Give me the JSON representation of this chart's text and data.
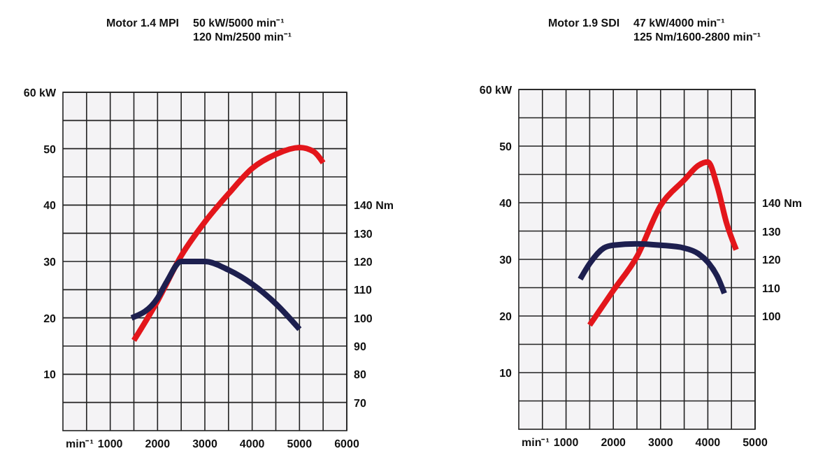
{
  "chart_data": [
    {
      "type": "line",
      "title": "Motor 1.4 MPI",
      "annotations": [
        "50 kW/5000 min⁻¹",
        "120 Nm/2500 min⁻¹"
      ],
      "xlabel": "min⁻¹",
      "grid": true,
      "line_style": "solid",
      "xlim": [
        0,
        6000
      ],
      "xticks": [
        {
          "value": 500,
          "label": null
        },
        1000,
        {
          "value": 1500,
          "label": null
        },
        2000,
        {
          "value": 2500,
          "label": null
        },
        3000,
        {
          "value": 3500,
          "label": null
        },
        4000,
        {
          "value": 4500,
          "label": null
        },
        5000,
        {
          "value": 5500,
          "label": null
        },
        6000
      ],
      "ylim": [
        0,
        60
      ],
      "yticks": [
        {
          "value": 5,
          "label": null
        },
        10,
        {
          "value": 15,
          "label": null
        },
        20,
        {
          "value": 25,
          "label": null
        },
        30,
        {
          "value": 35,
          "label": null
        },
        40,
        {
          "value": 45,
          "label": null
        },
        50,
        {
          "value": 55,
          "label": null
        },
        {
          "value": 60,
          "label": "60 kW"
        }
      ],
      "y2lim": [
        60,
        180
      ],
      "y2ticks": [
        70,
        80,
        90,
        100,
        110,
        120,
        130,
        {
          "value": 140,
          "label": "140 Nm"
        }
      ],
      "series": [
        {
          "color": "#e3161b",
          "x": [
            1500,
            2000,
            2500,
            3000,
            3500,
            4000,
            4500,
            5000,
            5300,
            5500
          ],
          "values": [
            16,
            23,
            31,
            37,
            42,
            46.5,
            49,
            50.2,
            49.5,
            47.5
          ]
        },
        {
          "color": "#1d1f4f",
          "axis": "y2",
          "x": [
            1450,
            2000,
            2200,
            2500,
            3000,
            3500,
            4000,
            4500,
            5000
          ],
          "values": [
            100,
            107,
            113,
            120,
            120,
            117,
            112,
            105,
            96
          ]
        }
      ]
    },
    {
      "type": "line",
      "title": "Motor 1.9 SDI",
      "annotations": [
        "47 kW/4000 min⁻¹",
        "125 Nm/1600-2800 min⁻¹"
      ],
      "xlabel": "min⁻¹",
      "grid": true,
      "line_style": "solid",
      "xlim": [
        0,
        5000
      ],
      "xticks": [
        {
          "value": 500,
          "label": null
        },
        1000,
        {
          "value": 1500,
          "label": null
        },
        2000,
        {
          "value": 2500,
          "label": null
        },
        3000,
        {
          "value": 3500,
          "label": null
        },
        4000,
        {
          "value": 4500,
          "label": null
        },
        5000
      ],
      "ylim": [
        0,
        60
      ],
      "yticks": [
        {
          "value": 5,
          "label": null
        },
        10,
        {
          "value": 15,
          "label": null
        },
        20,
        {
          "value": 25,
          "label": null
        },
        30,
        {
          "value": 35,
          "label": null
        },
        40,
        {
          "value": 45,
          "label": null
        },
        50,
        {
          "value": 55,
          "label": null
        },
        {
          "value": 60,
          "label": "60 kW"
        }
      ],
      "y2lim": [
        60,
        180
      ],
      "y2ticks": [
        100,
        110,
        120,
        130,
        {
          "value": 140,
          "label": "140 Nm"
        }
      ],
      "series": [
        {
          "color": "#e3161b",
          "x": [
            1500,
            2000,
            2500,
            3000,
            3500,
            3800,
            4000,
            4200,
            4400,
            4600
          ],
          "values": [
            18.4,
            24.5,
            30.5,
            39.5,
            44,
            46.6,
            47.2,
            42.9,
            36.3,
            31.7
          ]
        },
        {
          "color": "#1d1f4f",
          "axis": "y2",
          "x": [
            1300,
            1500,
            1800,
            2000,
            2500,
            3000,
            3500,
            3800,
            4000,
            4200,
            4350
          ],
          "values": [
            113,
            118.5,
            124,
            125,
            125.5,
            125,
            124,
            122,
            119,
            114,
            108
          ]
        }
      ]
    }
  ]
}
